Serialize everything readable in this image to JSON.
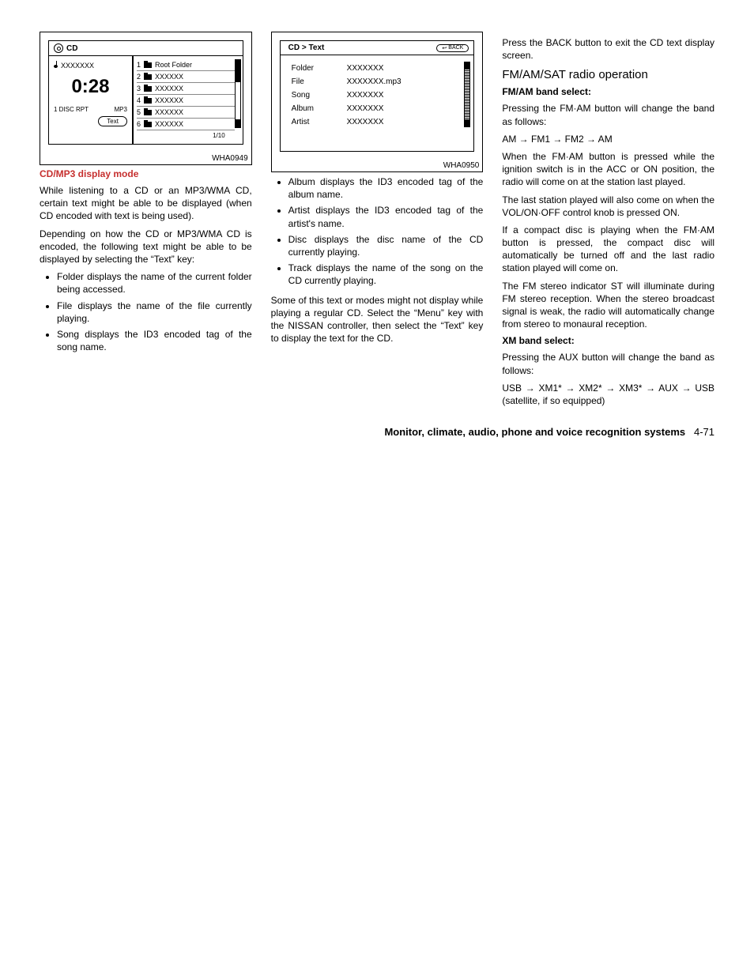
{
  "figure1": {
    "header": "CD",
    "track_name": "XXXXXXX",
    "time": "0:28",
    "mode_left": "1 DISC RPT",
    "mode_right": "MP3",
    "text_btn": "Text",
    "folders": [
      {
        "num": "1",
        "name": "Root Folder"
      },
      {
        "num": "2",
        "name": "XXXXXX"
      },
      {
        "num": "3",
        "name": "XXXXXX"
      },
      {
        "num": "4",
        "name": "XXXXXX"
      },
      {
        "num": "5",
        "name": "XXXXXX"
      },
      {
        "num": "6",
        "name": "XXXXXX"
      }
    ],
    "page_count": "1/10",
    "label": "WHA0949"
  },
  "figure2": {
    "header": "CD > Text",
    "back": "BACK",
    "rows": [
      {
        "label": "Folder",
        "value": "XXXXXXX"
      },
      {
        "label": "File",
        "value": "XXXXXXX.mp3"
      },
      {
        "label": "Song",
        "value": "XXXXXXX"
      },
      {
        "label": "Album",
        "value": "XXXXXXX"
      },
      {
        "label": "Artist",
        "value": "XXXXXXX"
      }
    ],
    "label": "WHA0950"
  },
  "col1": {
    "heading": "CD/MP3 display mode",
    "p1": "While listening to a CD or an MP3/WMA CD, certain text might be able to be displayed (when CD encoded with text is being used).",
    "p2": "Depending on how the CD or MP3/WMA CD is encoded, the following text might be able to be displayed by selecting the “Text” key:",
    "bullets": [
      "Folder displays the name of the current folder being accessed.",
      "File displays the name of the file currently playing.",
      "Song displays the ID3 encoded tag of the song name."
    ]
  },
  "col2": {
    "bullets": [
      "Album displays the ID3 encoded tag of the album name.",
      "Artist displays the ID3 encoded tag of the artist's name.",
      "Disc displays the disc name of the CD currently playing.",
      "Track displays the name of the song on the CD currently playing."
    ],
    "p1": "Some of this text or modes might not display while playing a regular CD. Select the “Menu” key with the NISSAN controller, then select the “Text” key to display the text for the CD."
  },
  "col3": {
    "p0": "Press the BACK button to exit the CD text display screen.",
    "h2": "FM/AM/SAT radio operation",
    "h3a": "FM/AM band select:",
    "p1": "Pressing the FM·AM button will change the band as follows:",
    "seq1": "AM → FM1 → FM2 → AM",
    "p2": "When the FM·AM button is pressed while the ignition switch is in the ACC or ON position, the radio will come on at the station last played.",
    "p3": "The last station played will also come on when the VOL/ON·OFF control knob is pressed ON.",
    "p4": "If a compact disc is playing when the FM·AM button is pressed, the compact disc will automatically be turned off and the last radio station played will come on.",
    "p5": "The FM stereo indicator ST will illuminate during FM stereo reception. When the stereo broadcast signal is weak, the radio will automatically change from stereo to monaural reception.",
    "h3b": "XM band select:",
    "p6": "Pressing the AUX button will change the band as follows:",
    "seq2": "USB → XM1* → XM2* → XM3* → AUX → USB (satellite, if so equipped)"
  },
  "footer": {
    "section": "Monitor, climate, audio, phone and voice recognition systems",
    "page": "4-71"
  }
}
